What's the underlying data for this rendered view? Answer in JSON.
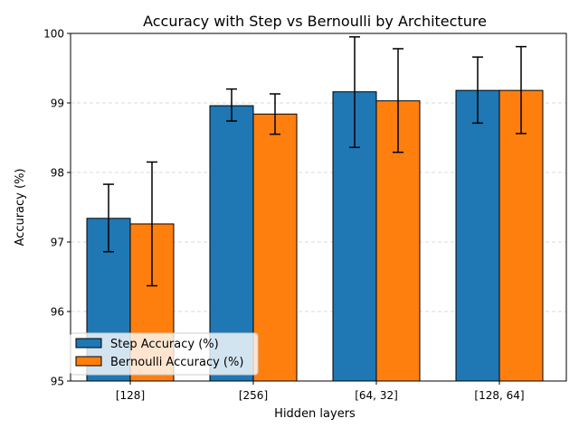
{
  "chart_data": {
    "type": "bar",
    "title": "Accuracy with Step vs Bernoulli by Architecture",
    "xlabel": "Hidden layers",
    "ylabel": "Accuracy (%)",
    "categories": [
      "[128]",
      "[256]",
      "[64, 32]",
      "[128, 64]"
    ],
    "ylim": [
      95,
      100
    ],
    "yticks": [
      "95",
      "96",
      "97",
      "98",
      "99",
      "100"
    ],
    "grid": "y-dashed",
    "legend_position": "lower-left",
    "series": [
      {
        "name": "Step Accuracy (%)",
        "color": "#1f77b4",
        "values": [
          97.34,
          98.96,
          99.16,
          99.18
        ],
        "err_low": [
          96.86,
          98.74,
          98.36,
          98.71
        ],
        "err_high": [
          97.83,
          99.2,
          99.95,
          99.66
        ]
      },
      {
        "name": "Bernoulli Accuracy (%)",
        "color": "#ff7f0e",
        "values": [
          97.26,
          98.84,
          99.03,
          99.18
        ],
        "err_low": [
          96.37,
          98.55,
          98.29,
          98.56
        ],
        "err_high": [
          98.15,
          99.13,
          99.78,
          99.81
        ]
      }
    ]
  }
}
